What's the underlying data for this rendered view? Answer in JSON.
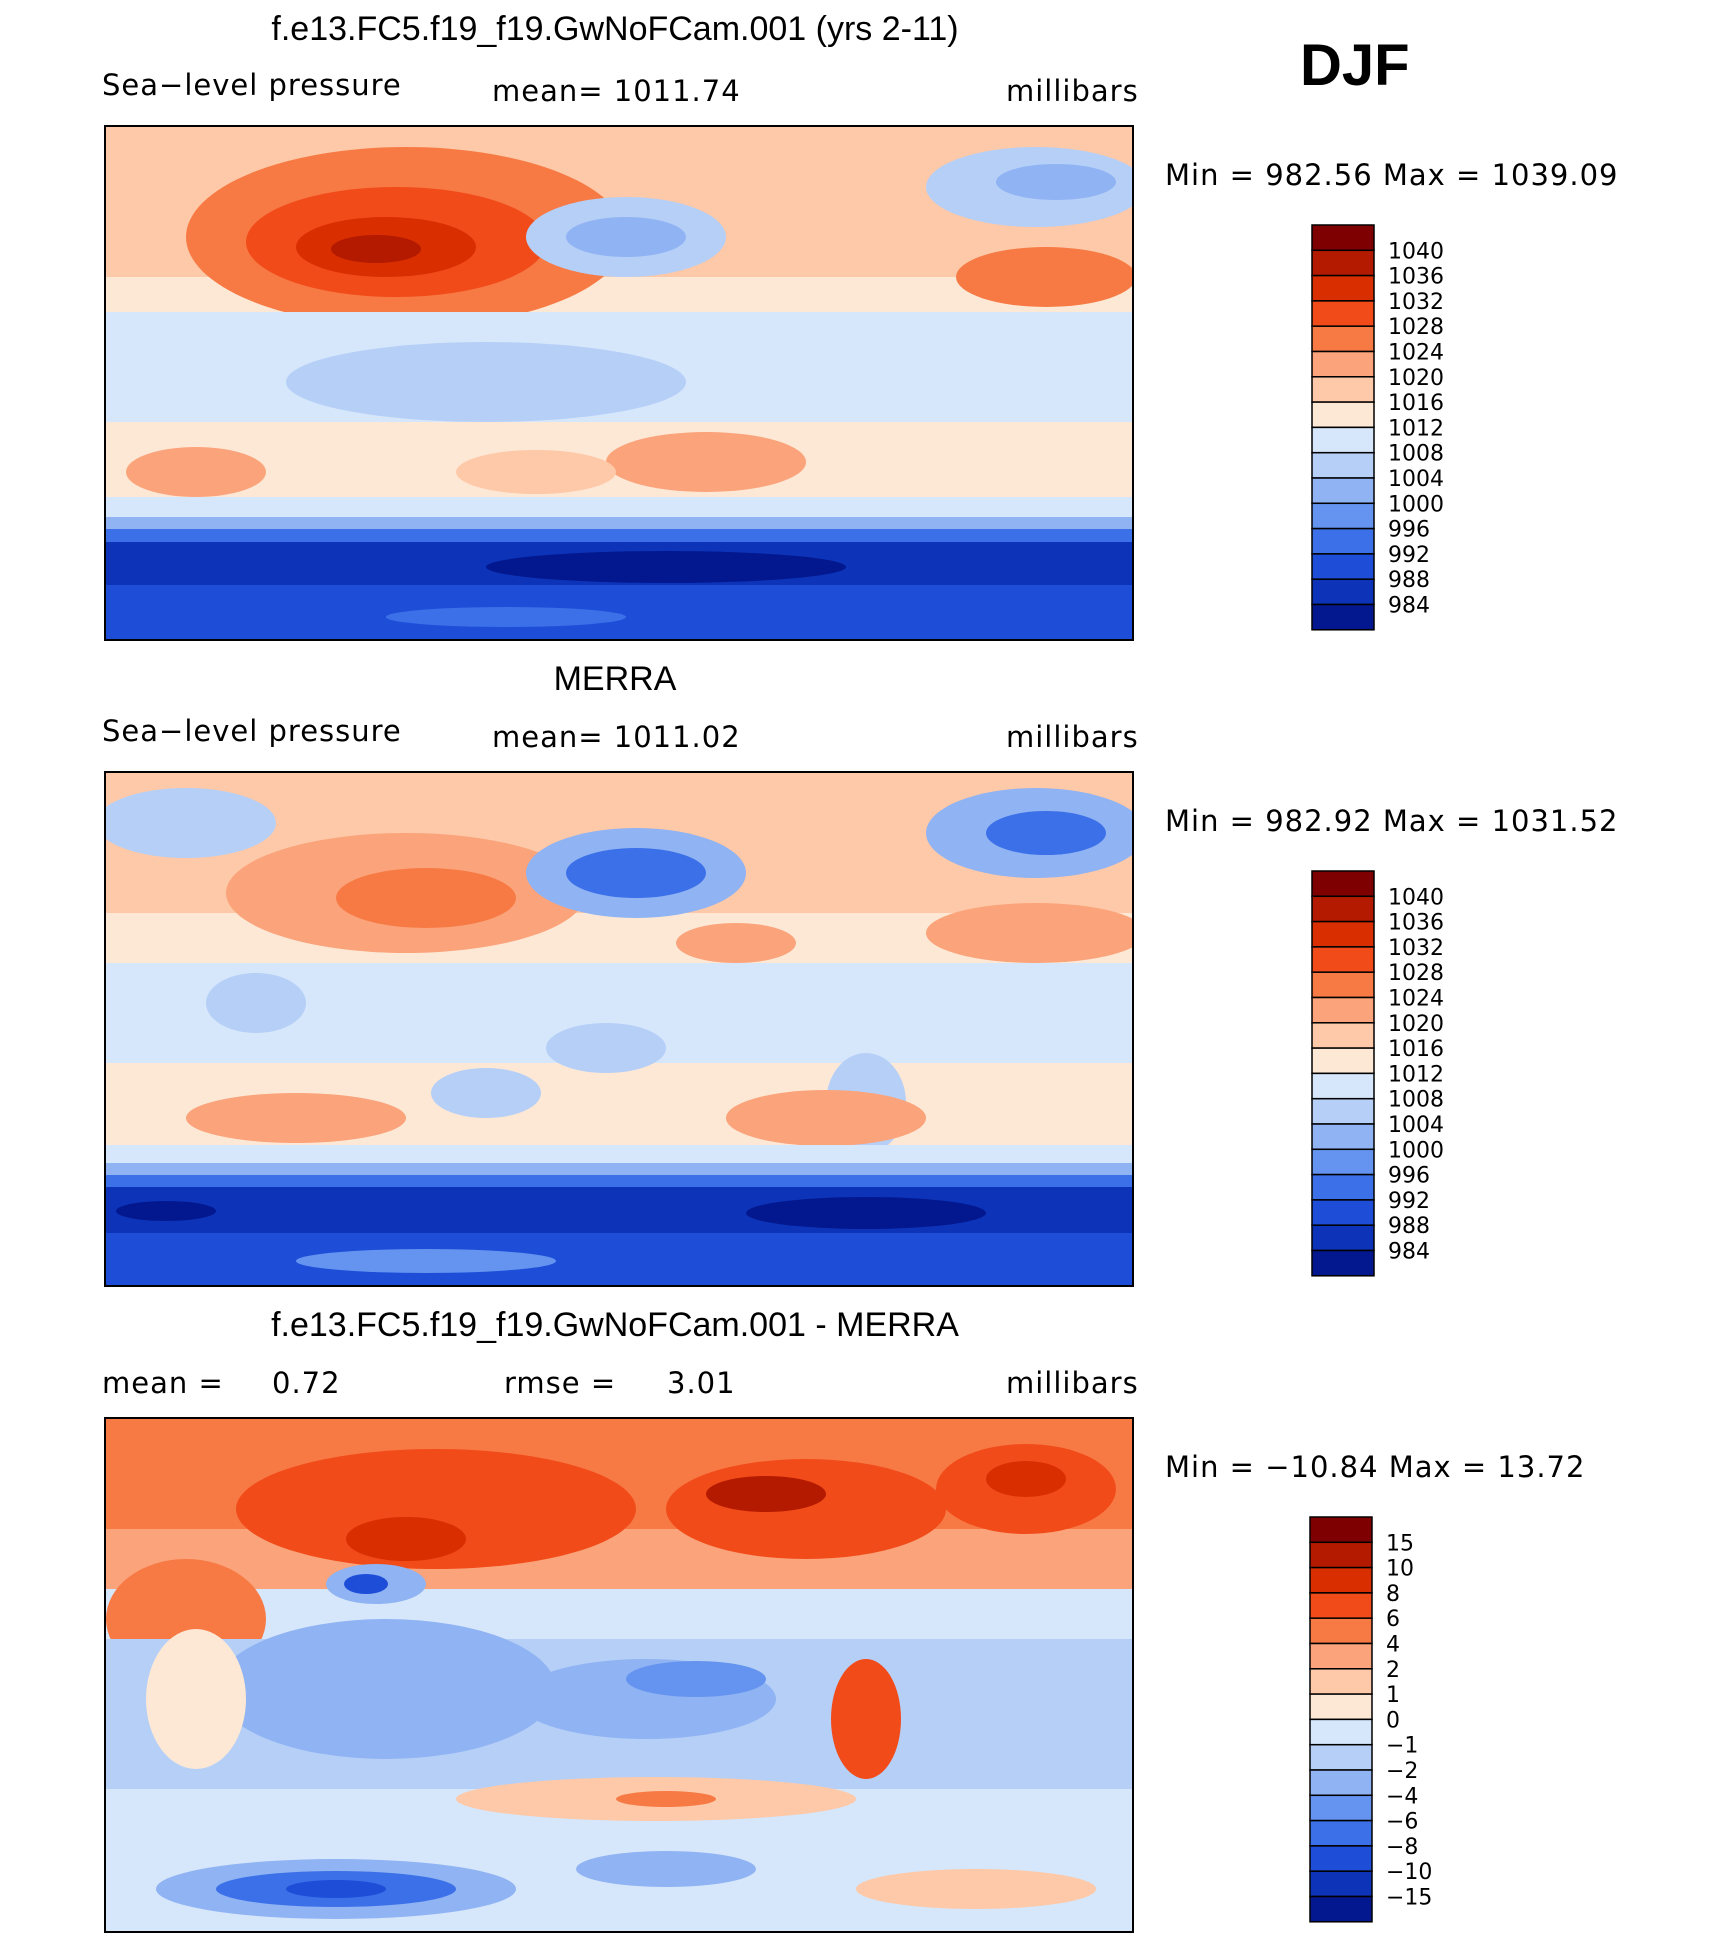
{
  "season": "DJF",
  "palettes": {
    "pressure": [
      "#7f0000",
      "#b31a00",
      "#d92e00",
      "#f24b1a",
      "#f77a45",
      "#fba37a",
      "#fdc9a8",
      "#fde8d6",
      "#d6e6fb",
      "#b5cff7",
      "#8fb3f3",
      "#6494ef",
      "#3c70e8",
      "#1e4ed8",
      "#0d34b8",
      "#03188f"
    ],
    "difference": [
      "#7f0000",
      "#b31a00",
      "#d92e00",
      "#f24b1a",
      "#f77a45",
      "#fba37a",
      "#fdc9a8",
      "#fde8d6",
      "#d6e6fb",
      "#b5cff7",
      "#8fb3f3",
      "#6494ef",
      "#3c70e8",
      "#1e4ed8",
      "#0d34b8",
      "#03188f"
    ]
  },
  "panels": [
    {
      "title": "f.e13.FC5.f19_f19.GwNoFCam.001 (yrs 2-11)",
      "left_label": "Sea−level pressure",
      "center_label": "mean=  1011.74",
      "right_label": "millibars",
      "stats": "Min  =  982.56  Max  =  1039.09"
    },
    {
      "title": "MERRA",
      "left_label": "Sea−level pressure",
      "center_label": "mean=  1011.02",
      "right_label": "millibars",
      "stats": "Min  =  982.92  Max  =  1031.52"
    },
    {
      "title": "f.e13.FC5.f19_f19.GwNoFCam.001 - MERRA",
      "left_label": "mean  =",
      "left_value": "0.72",
      "center_label": "rmse  =",
      "center_value": "3.01",
      "right_label": "millibars",
      "stats": "Min  =  −10.84  Max  =    13.72"
    }
  ],
  "chart_data": [
    {
      "type": "heatmap",
      "title": "f.e13.FC5.f19_f19.GwNoFCam.001 (yrs 2-11)",
      "variable": "Sea−level pressure",
      "units": "millibars",
      "mean": 1011.74,
      "min": 982.56,
      "max": 1039.09,
      "colorbar_levels": [
        "1040",
        "1036",
        "1032",
        "1028",
        "1024",
        "1020",
        "1016",
        "1012",
        "1008",
        "1004",
        "1000",
        "996",
        "992",
        "988",
        "984"
      ]
    },
    {
      "type": "heatmap",
      "title": "MERRA",
      "variable": "Sea−level pressure",
      "units": "millibars",
      "mean": 1011.02,
      "min": 982.92,
      "max": 1031.52,
      "colorbar_levels": [
        "1040",
        "1036",
        "1032",
        "1028",
        "1024",
        "1020",
        "1016",
        "1012",
        "1008",
        "1004",
        "1000",
        "996",
        "992",
        "988",
        "984"
      ]
    },
    {
      "type": "heatmap",
      "title": "f.e13.FC5.f19_f19.GwNoFCam.001 - MERRA",
      "units": "millibars",
      "mean": 0.72,
      "rmse": 3.01,
      "min": -10.84,
      "max": 13.72,
      "colorbar_levels": [
        "15",
        "10",
        "8",
        "6",
        "4",
        "2",
        "1",
        "0",
        "−1",
        "−2",
        "−4",
        "−6",
        "−8",
        "−10",
        "−15"
      ]
    }
  ]
}
